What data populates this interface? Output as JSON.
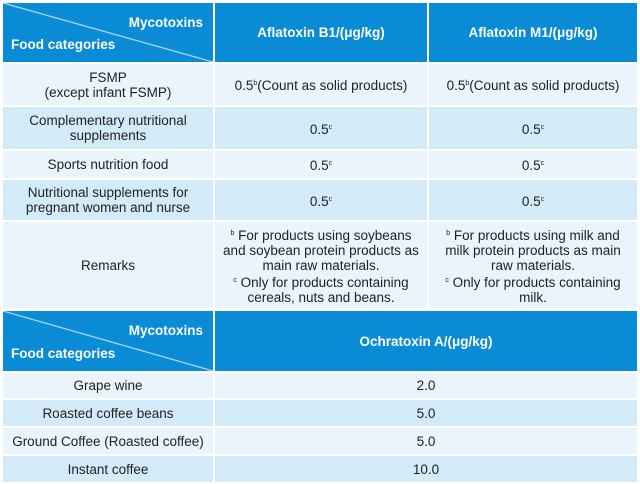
{
  "table1": {
    "corner_top": "Mycotoxins",
    "corner_bottom": "Food categories",
    "headers": [
      "Aflatoxin B1/(μg/kg)",
      "Aflatoxin M1/(μg/kg)"
    ],
    "rows": [
      {
        "cat": "FSMP",
        "cat2": "(except infant FSMP)",
        "b1": "0.5",
        "b1_sup": "b",
        "b1_note": "(Count as solid products)",
        "m1": "0.5",
        "m1_sup": "b",
        "m1_note": "(Count as solid products)"
      },
      {
        "cat": "Complementary nutritional supplements",
        "b1": "0.5",
        "b1_sup": "c",
        "m1": "0.5",
        "m1_sup": "c"
      },
      {
        "cat": "Sports nutrition food",
        "b1": "0.5",
        "b1_sup": "c",
        "m1": "0.5",
        "m1_sup": "c"
      },
      {
        "cat": "Nutritional supplements for pregnant women and nurse",
        "b1": "0.5",
        "b1_sup": "c",
        "m1": "0.5",
        "m1_sup": "c"
      }
    ],
    "remarks": {
      "label": "Remarks",
      "b1_b": "For products using soybeans and soybean protein products as main raw materials.",
      "b1_c": "Only for products containing cereals, nuts and beans.",
      "m1_b": "For products using milk and milk protein products as main raw materials.",
      "m1_c": "Only for products containing milk.",
      "sup_b": "b",
      "sup_c": "c"
    }
  },
  "table2": {
    "corner_top": "Mycotoxins",
    "corner_bottom": "Food categories",
    "header": "Ochratoxin A/(μg/kg)",
    "rows": [
      {
        "cat": "Grape wine",
        "val": "2.0"
      },
      {
        "cat": "Roasted coffee beans",
        "val": "5.0"
      },
      {
        "cat": "Ground Coffee (Roasted coffee)",
        "val": "5.0"
      },
      {
        "cat": "Instant coffee",
        "val": "10.0"
      }
    ]
  }
}
